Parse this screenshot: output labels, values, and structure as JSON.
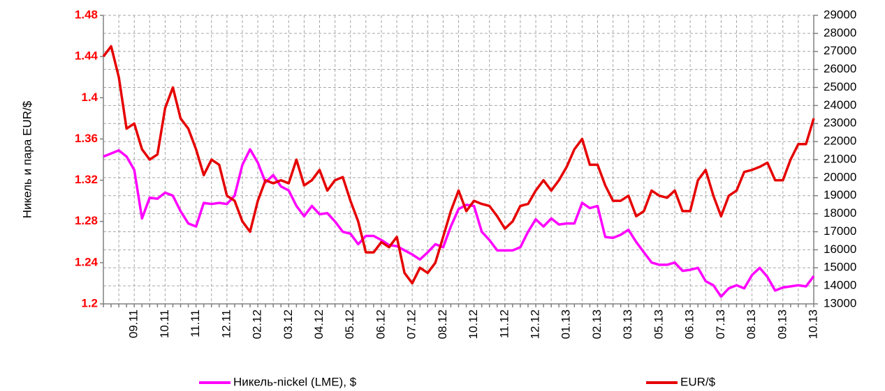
{
  "chart_data": {
    "type": "line",
    "y_label": "Никель и пара EUR/$",
    "categories": [
      null,
      null,
      null,
      null,
      "09.11",
      null,
      null,
      null,
      "10.11",
      null,
      null,
      null,
      "11.11",
      null,
      null,
      null,
      "12.11",
      null,
      null,
      null,
      "02.12",
      null,
      null,
      null,
      "03.12",
      null,
      null,
      null,
      "04.12",
      null,
      null,
      null,
      "05.12",
      null,
      null,
      null,
      "06.12",
      null,
      null,
      null,
      "07.12",
      null,
      null,
      null,
      "08.12",
      null,
      null,
      null,
      "10.12",
      null,
      null,
      null,
      "11.12",
      null,
      null,
      null,
      "12.12",
      null,
      null,
      null,
      "01.13",
      null,
      null,
      null,
      "02.13",
      null,
      null,
      null,
      "03.13",
      null,
      null,
      null,
      "05.13",
      null,
      null,
      null,
      "06.13",
      null,
      null,
      null,
      "07.13",
      null,
      null,
      null,
      "08.13",
      null,
      null,
      null,
      "09.13",
      null,
      null,
      null,
      "10.13"
    ],
    "ylim": [
      1.2,
      1.48
    ],
    "yticks": [
      1.2,
      1.24,
      1.28,
      1.32,
      1.36,
      1.4,
      1.44,
      1.48
    ],
    "y2lim": [
      13000,
      29000
    ],
    "y2ticks": [
      13000,
      14000,
      15000,
      16000,
      17000,
      18000,
      19000,
      20000,
      21000,
      22000,
      23000,
      24000,
      25000,
      26000,
      27000,
      28000,
      29000
    ],
    "grid": true,
    "series": [
      {
        "name": "Никель-nickel (LME), $",
        "color": "#ff00ff",
        "axis": "y2",
        "values": [
          21170,
          21340,
          21510,
          21170,
          20430,
          17740,
          18890,
          18830,
          19170,
          19000,
          18140,
          17460,
          17290,
          18600,
          18540,
          18600,
          18540,
          19000,
          20710,
          21570,
          20830,
          19740,
          20140,
          19510,
          19290,
          18430,
          17860,
          18430,
          17970,
          18030,
          17570,
          17000,
          16890,
          16310,
          16770,
          16770,
          16540,
          16260,
          16200,
          15970,
          15740,
          15460,
          15860,
          16310,
          16140,
          17290,
          18260,
          18490,
          18430,
          17000,
          16540,
          15970,
          15970,
          15970,
          16140,
          17000,
          17690,
          17290,
          17740,
          17400,
          17460,
          17460,
          18600,
          18310,
          18430,
          16710,
          16660,
          16830,
          17110,
          16430,
          15860,
          15290,
          15170,
          15170,
          15290,
          14830,
          14890,
          15000,
          14260,
          14030,
          13400,
          13860,
          14030,
          13860,
          14600,
          15000,
          14490,
          13740,
          13910,
          13970,
          14030,
          13970,
          14540
        ]
      },
      {
        "name": "EUR/$",
        "color": "#e60000",
        "values": [
          1.44,
          1.45,
          1.42,
          1.37,
          1.375,
          1.35,
          1.34,
          1.345,
          1.39,
          1.41,
          1.38,
          1.37,
          1.35,
          1.325,
          1.34,
          1.335,
          1.305,
          1.3,
          1.28,
          1.27,
          1.3,
          1.32,
          1.317,
          1.32,
          1.317,
          1.34,
          1.315,
          1.32,
          1.33,
          1.31,
          1.32,
          1.323,
          1.3,
          1.28,
          1.25,
          1.25,
          1.26,
          1.255,
          1.265,
          1.23,
          1.22,
          1.235,
          1.23,
          1.24,
          1.265,
          1.29,
          1.31,
          1.29,
          1.3,
          1.297,
          1.295,
          1.285,
          1.273,
          1.28,
          1.295,
          1.297,
          1.31,
          1.32,
          1.31,
          1.32,
          1.333,
          1.35,
          1.36,
          1.335,
          1.335,
          1.315,
          1.3,
          1.3,
          1.305,
          1.285,
          1.29,
          1.31,
          1.305,
          1.303,
          1.31,
          1.29,
          1.29,
          1.32,
          1.33,
          1.305,
          1.285,
          1.305,
          1.31,
          1.328,
          1.33,
          1.333,
          1.337,
          1.32,
          1.32,
          1.34,
          1.355,
          1.355,
          1.38
        ]
      }
    ]
  }
}
